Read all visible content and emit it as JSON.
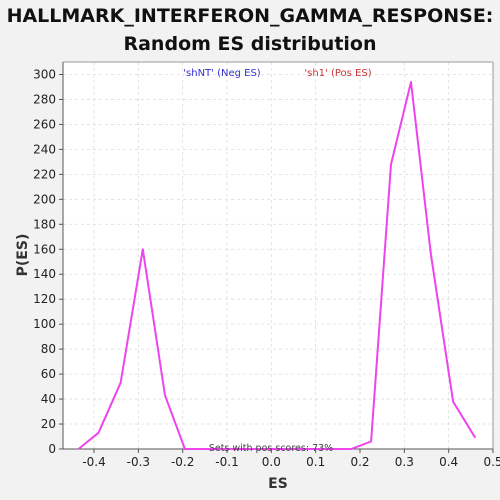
{
  "title_lines": [
    "HALLMARK_INTERFERON_GAMMA_RESPONSE:",
    "Random ES distribution"
  ],
  "colors": {
    "background": "#f2f2f2",
    "plot_background": "#ffffff",
    "line": "#ee44ee",
    "neg_label": "#3333cc",
    "pos_label": "#cc3333",
    "grid": "#dddddd"
  },
  "chart_data": {
    "type": "line",
    "xlabel": "ES",
    "ylabel": "P(ES)",
    "xlim": [
      -0.47,
      0.5
    ],
    "ylim": [
      0,
      310
    ],
    "xticks": [
      -0.4,
      -0.3,
      -0.2,
      -0.1,
      0.0,
      0.1,
      0.2,
      0.3,
      0.4,
      0.5
    ],
    "xtick_labels": [
      "-0.4",
      "-0.3",
      "-0.2",
      "-0.1",
      "0.0",
      "0.1",
      "0.2",
      "0.3",
      "0.4",
      "0.5"
    ],
    "yticks": [
      0,
      20,
      40,
      60,
      80,
      100,
      120,
      140,
      160,
      180,
      200,
      220,
      240,
      260,
      280,
      300
    ],
    "grid": true,
    "series": [
      {
        "x": [
          -0.435,
          -0.39,
          -0.34,
          -0.29,
          -0.24,
          -0.195,
          -0.15,
          -0.1,
          -0.05,
          0.0,
          0.05,
          0.1,
          0.15,
          0.18,
          0.225,
          0.27,
          0.315,
          0.36,
          0.41,
          0.46
        ],
        "y": [
          0,
          13,
          53,
          160,
          43,
          0,
          0,
          0,
          0,
          0,
          0,
          0,
          0,
          0,
          6,
          228,
          294,
          156,
          38,
          9
        ]
      }
    ],
    "annotations": {
      "neg_label": "'shNT' (Neg ES)",
      "pos_label": "'sh1' (Pos ES)",
      "note": "Sets with pos scores: 73%"
    }
  }
}
